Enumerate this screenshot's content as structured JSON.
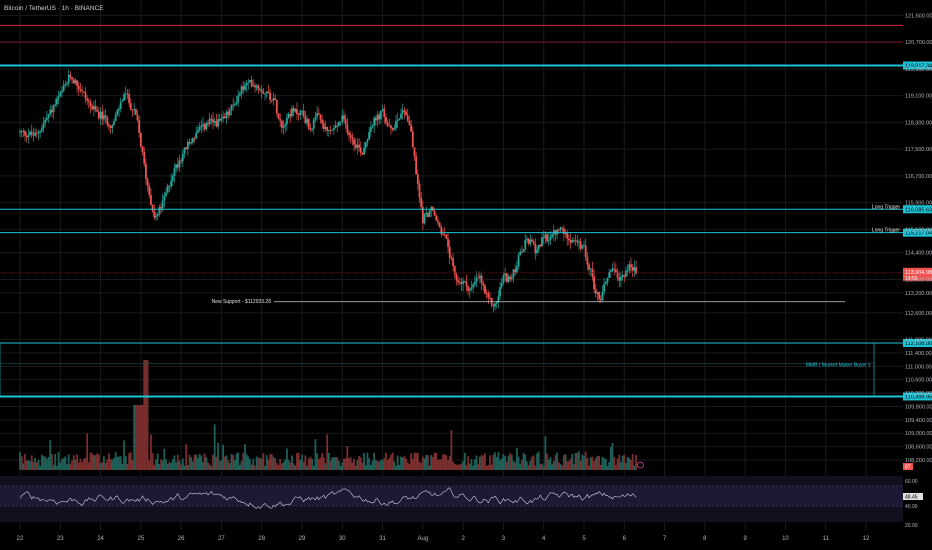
{
  "chart_data": {
    "type": "candlestick",
    "title": "Bitcoin / TetherUS · 1h · BINANCE",
    "symbol": "Bitcoin / TetherUS",
    "interval": "1h",
    "exchange": "BINANCE",
    "y_range": [
      107900,
      121900
    ],
    "y_ticks": [
      {
        "value": 121500,
        "label": "121,500.00"
      },
      {
        "value": 120700,
        "label": "120,700.00"
      },
      {
        "value": 119900,
        "label": "119,900.00"
      },
      {
        "value": 119100,
        "label": "119,100.00"
      },
      {
        "value": 118300,
        "label": "118,300.00"
      },
      {
        "value": 117500,
        "label": "117,500.00"
      },
      {
        "value": 116700,
        "label": "116,700.00"
      },
      {
        "value": 115900,
        "label": "115,900.00"
      },
      {
        "value": 115100,
        "label": "115,100.00"
      },
      {
        "value": 114400,
        "label": "114,400.00"
      },
      {
        "value": 113600,
        "label": "113,600.00"
      },
      {
        "value": 113200,
        "label": "113,200.00"
      },
      {
        "value": 112600,
        "label": "112,600.00"
      },
      {
        "value": 111800,
        "label": "111,800.00"
      },
      {
        "value": 111400,
        "label": "111,400.00"
      },
      {
        "value": 111000,
        "label": "111,000.00"
      },
      {
        "value": 110600,
        "label": "110,600.00"
      },
      {
        "value": 110200,
        "label": "110,200.00"
      },
      {
        "value": 109800,
        "label": "109,800.00"
      },
      {
        "value": 109400,
        "label": "109,400.00"
      },
      {
        "value": 109000,
        "label": "109,000.00"
      },
      {
        "value": 108600,
        "label": "108,600.00"
      },
      {
        "value": 108200,
        "label": "108,200.00"
      }
    ],
    "x_ticks": [
      "22",
      "23",
      "24",
      "25",
      "26",
      "27",
      "28",
      "29",
      "30",
      "31",
      "Aug",
      "2",
      "3",
      "4",
      "5",
      "6",
      "7",
      "8",
      "9",
      "10",
      "11",
      "12"
    ],
    "x_range_days": [
      22,
      43
    ],
    "price_path": [
      [
        22.0,
        118000
      ],
      [
        22.4,
        117900
      ],
      [
        22.7,
        118500
      ],
      [
        23.0,
        119100
      ],
      [
        23.25,
        119700
      ],
      [
        23.5,
        119300
      ],
      [
        23.8,
        118700
      ],
      [
        24.1,
        118400
      ],
      [
        24.3,
        118200
      ],
      [
        24.6,
        119200
      ],
      [
        24.9,
        118400
      ],
      [
        25.15,
        116500
      ],
      [
        25.35,
        115400
      ],
      [
        25.55,
        115900
      ],
      [
        25.8,
        116800
      ],
      [
        26.1,
        117500
      ],
      [
        26.4,
        118000
      ],
      [
        26.7,
        118300
      ],
      [
        27.0,
        118300
      ],
      [
        27.3,
        118800
      ],
      [
        27.5,
        119300
      ],
      [
        27.75,
        119500
      ],
      [
        28.0,
        119300
      ],
      [
        28.3,
        119000
      ],
      [
        28.5,
        118200
      ],
      [
        28.7,
        118600
      ],
      [
        29.0,
        118600
      ],
      [
        29.2,
        118100
      ],
      [
        29.4,
        118500
      ],
      [
        29.6,
        118000
      ],
      [
        29.8,
        118100
      ],
      [
        30.0,
        118400
      ],
      [
        30.25,
        117800
      ],
      [
        30.5,
        117400
      ],
      [
        30.7,
        118200
      ],
      [
        31.0,
        118600
      ],
      [
        31.2,
        118000
      ],
      [
        31.4,
        118500
      ],
      [
        31.55,
        118700
      ],
      [
        31.7,
        118100
      ],
      [
        31.85,
        116600
      ],
      [
        32.0,
        115400
      ],
      [
        32.2,
        115700
      ],
      [
        32.4,
        115200
      ],
      [
        32.6,
        114700
      ],
      [
        32.8,
        113600
      ],
      [
        33.0,
        113500
      ],
      [
        33.2,
        113300
      ],
      [
        33.4,
        113700
      ],
      [
        33.6,
        113000
      ],
      [
        33.8,
        112800
      ],
      [
        34.0,
        113700
      ],
      [
        34.2,
        113600
      ],
      [
        34.4,
        114300
      ],
      [
        34.6,
        114800
      ],
      [
        34.8,
        114500
      ],
      [
        35.0,
        114800
      ],
      [
        35.2,
        114900
      ],
      [
        35.4,
        115100
      ],
      [
        35.6,
        114900
      ],
      [
        35.8,
        114700
      ],
      [
        36.0,
        114500
      ],
      [
        36.15,
        113900
      ],
      [
        36.3,
        113200
      ],
      [
        36.4,
        113000
      ],
      [
        36.55,
        113600
      ],
      [
        36.7,
        114000
      ],
      [
        36.85,
        113500
      ],
      [
        37.0,
        113800
      ],
      [
        37.15,
        114000
      ],
      [
        37.3,
        113800
      ]
    ],
    "current_price": {
      "label": "113,904.98",
      "time": "19:55"
    },
    "levels": [
      {
        "name": "resistance-top",
        "value": 121200,
        "color": "#d7263d",
        "label": ""
      },
      {
        "name": "resistance-2",
        "value": 120700,
        "color": "#7a1a2a",
        "label": ""
      },
      {
        "name": "cyan-top",
        "value": 120000,
        "color": "#1cc6d8",
        "label": "119,917.34"
      },
      {
        "name": "long-trigger-1",
        "value": 115700,
        "color": "#1cc6d8",
        "label": "116,085.63",
        "text": "Long Trigger"
      },
      {
        "name": "long-trigger-2",
        "value": 115000,
        "color": "#1cc6d8",
        "label": "115,217.04",
        "text": "Long Trigger"
      },
      {
        "name": "mmb-top",
        "value": 111700,
        "color": "#1cc6d8",
        "label": "112,108.00"
      },
      {
        "name": "mmb-bottom",
        "value": 110100,
        "color": "#1cc6d8",
        "label": "110,499.95"
      }
    ],
    "annotations": [
      {
        "name": "new-support",
        "text": "New Support - $112933.28",
        "value": 112933.28
      },
      {
        "name": "mmb-box",
        "text": "MMB ( Market Maker Buyer )"
      }
    ],
    "rsi": {
      "labels": [
        "60.00",
        "48.45",
        "40.00",
        "20.00"
      ],
      "current": "48.45"
    },
    "volume_badge": "87"
  },
  "colors": {
    "up": "#26a69a",
    "down": "#ef5350",
    "cyan": "#1cc6d8",
    "axis_text": "#b2b5be",
    "grid": "#1a1a1a"
  }
}
